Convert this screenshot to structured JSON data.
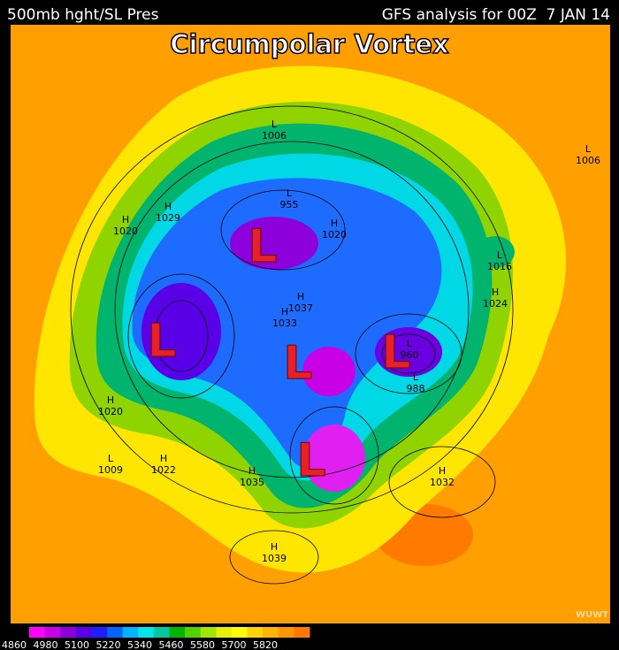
{
  "header": {
    "left": "500mb hght/SL Pres",
    "right": "GFS analysis for 00Z  7 JAN 14"
  },
  "title": "Circumpolar Vortex",
  "vortex_lows": [
    "L",
    "L",
    "L",
    "L",
    "L"
  ],
  "pressure_centers": [
    {
      "symbol": "H",
      "value": 1020
    },
    {
      "symbol": "H",
      "value": 1029
    },
    {
      "symbol": "L",
      "value": 1006
    },
    {
      "symbol": "L",
      "value": 955
    },
    {
      "symbol": "H",
      "value": 1020
    },
    {
      "symbol": "L",
      "value": 1006
    },
    {
      "symbol": "L",
      "value": 1016
    },
    {
      "symbol": "H",
      "value": 1024
    },
    {
      "symbol": "H",
      "value": 1020
    },
    {
      "symbol": "L",
      "value": 1009
    },
    {
      "symbol": "H",
      "value": 1022
    },
    {
      "symbol": "H",
      "value": 1035
    },
    {
      "symbol": "H",
      "value": 1032
    },
    {
      "symbol": "H",
      "value": 1039
    },
    {
      "symbol": "L",
      "value": 960
    },
    {
      "symbol": "L",
      "value": 988
    },
    {
      "symbol": "H",
      "value": 1037
    },
    {
      "symbol": "H",
      "value": 1033
    }
  ],
  "watermark": "WUWT",
  "colorbar": {
    "labels": [
      4860,
      4980,
      5100,
      5220,
      5340,
      5460,
      5580,
      5700,
      5820
    ],
    "colors": [
      "#ff00ff",
      "#c800e6",
      "#8c00dc",
      "#5a00e6",
      "#1e1eff",
      "#0064ff",
      "#00b4ff",
      "#00e6e6",
      "#00c8a0",
      "#00b400",
      "#50d200",
      "#a0e600",
      "#e6f000",
      "#ffff00",
      "#ffd200",
      "#ffb400",
      "#ff9600",
      "#ff7800"
    ]
  }
}
